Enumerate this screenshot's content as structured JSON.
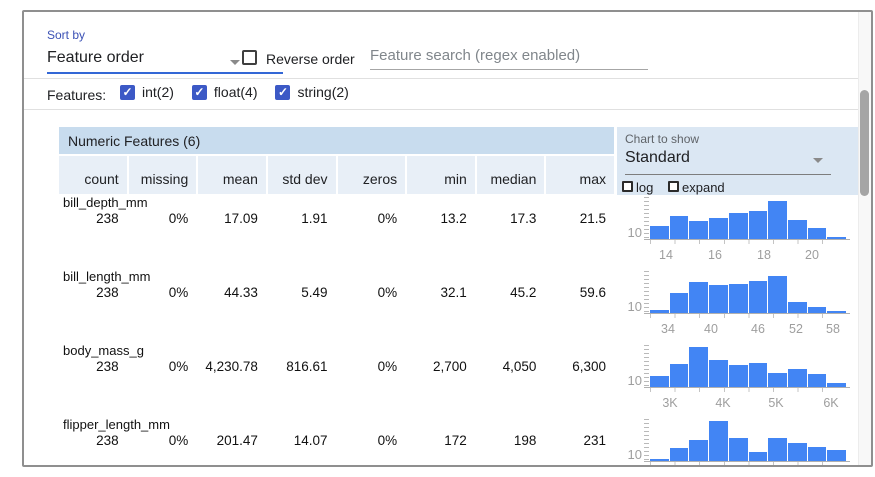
{
  "controls": {
    "sort_by_label": "Sort by",
    "sort_by_value": "Feature order",
    "reverse_order_label": "Reverse order",
    "search_placeholder": "Feature search (regex enabled)",
    "features_label": "Features:",
    "feature_type_filters": [
      {
        "label": "int(2)",
        "checked": true
      },
      {
        "label": "float(4)",
        "checked": true
      },
      {
        "label": "string(2)",
        "checked": true
      }
    ],
    "chart_to_show_label": "Chart to show",
    "chart_to_show_value": "Standard",
    "log_label": "log",
    "expand_label": "expand"
  },
  "table": {
    "section_title": "Numeric Features (6)",
    "columns": [
      "count",
      "missing",
      "mean",
      "std dev",
      "zeros",
      "min",
      "median",
      "max"
    ],
    "rows": [
      {
        "name": "bill_depth_mm",
        "values": [
          "238",
          "0%",
          "17.09",
          "1.91",
          "0%",
          "13.2",
          "17.3",
          "21.5"
        ]
      },
      {
        "name": "bill_length_mm",
        "values": [
          "238",
          "0%",
          "44.33",
          "5.49",
          "0%",
          "32.1",
          "45.2",
          "59.6"
        ]
      },
      {
        "name": "body_mass_g",
        "values": [
          "238",
          "0%",
          "4,230.78",
          "816.61",
          "0%",
          "2,700",
          "4,050",
          "6,300"
        ]
      },
      {
        "name": "flipper_length_mm",
        "values": [
          "238",
          "0%",
          "201.47",
          "14.07",
          "0%",
          "172",
          "198",
          "231"
        ]
      }
    ]
  },
  "chart_data": [
    {
      "type": "bar",
      "feature": "bill_depth_mm",
      "ylabel_tick": "10",
      "x_ticks": [
        "14",
        "16",
        "18",
        "20"
      ],
      "x_tick_pos": [
        0.08,
        0.33,
        0.58,
        0.82
      ],
      "bar_heights": [
        0.3,
        0.55,
        0.43,
        0.5,
        0.62,
        0.67,
        0.9,
        0.45,
        0.26,
        0.05
      ]
    },
    {
      "type": "bar",
      "feature": "bill_length_mm",
      "ylabel_tick": "10",
      "x_ticks": [
        "34",
        "40",
        "46",
        "52",
        "58"
      ],
      "x_tick_pos": [
        0.09,
        0.31,
        0.55,
        0.74,
        0.93
      ],
      "bar_heights": [
        0.06,
        0.48,
        0.74,
        0.66,
        0.68,
        0.77,
        0.87,
        0.25,
        0.14,
        0.05
      ]
    },
    {
      "type": "bar",
      "feature": "body_mass_g",
      "ylabel_tick": "10",
      "x_ticks": [
        "3K",
        "4K",
        "5K",
        "6K"
      ],
      "x_tick_pos": [
        0.1,
        0.37,
        0.64,
        0.92
      ],
      "bar_heights": [
        0.25,
        0.55,
        0.95,
        0.64,
        0.52,
        0.57,
        0.34,
        0.42,
        0.32,
        0.1
      ]
    },
    {
      "type": "bar",
      "feature": "flipper_length_mm",
      "ylabel_tick": "10",
      "x_ticks": [],
      "x_tick_pos": [],
      "bar_heights": [
        0.05,
        0.3,
        0.5,
        0.95,
        0.55,
        0.22,
        0.55,
        0.43,
        0.33,
        0.25
      ]
    }
  ],
  "colors": {
    "accent_blue": "#3367d6",
    "label_blue": "#3b51b5",
    "checkbox_blue": "#3c59c6",
    "bar_blue": "#4285f4",
    "section_header_bg": "#c8dcee",
    "column_header_bg": "#e8eff7",
    "chart_panel_bg": "#dbe7f3"
  }
}
